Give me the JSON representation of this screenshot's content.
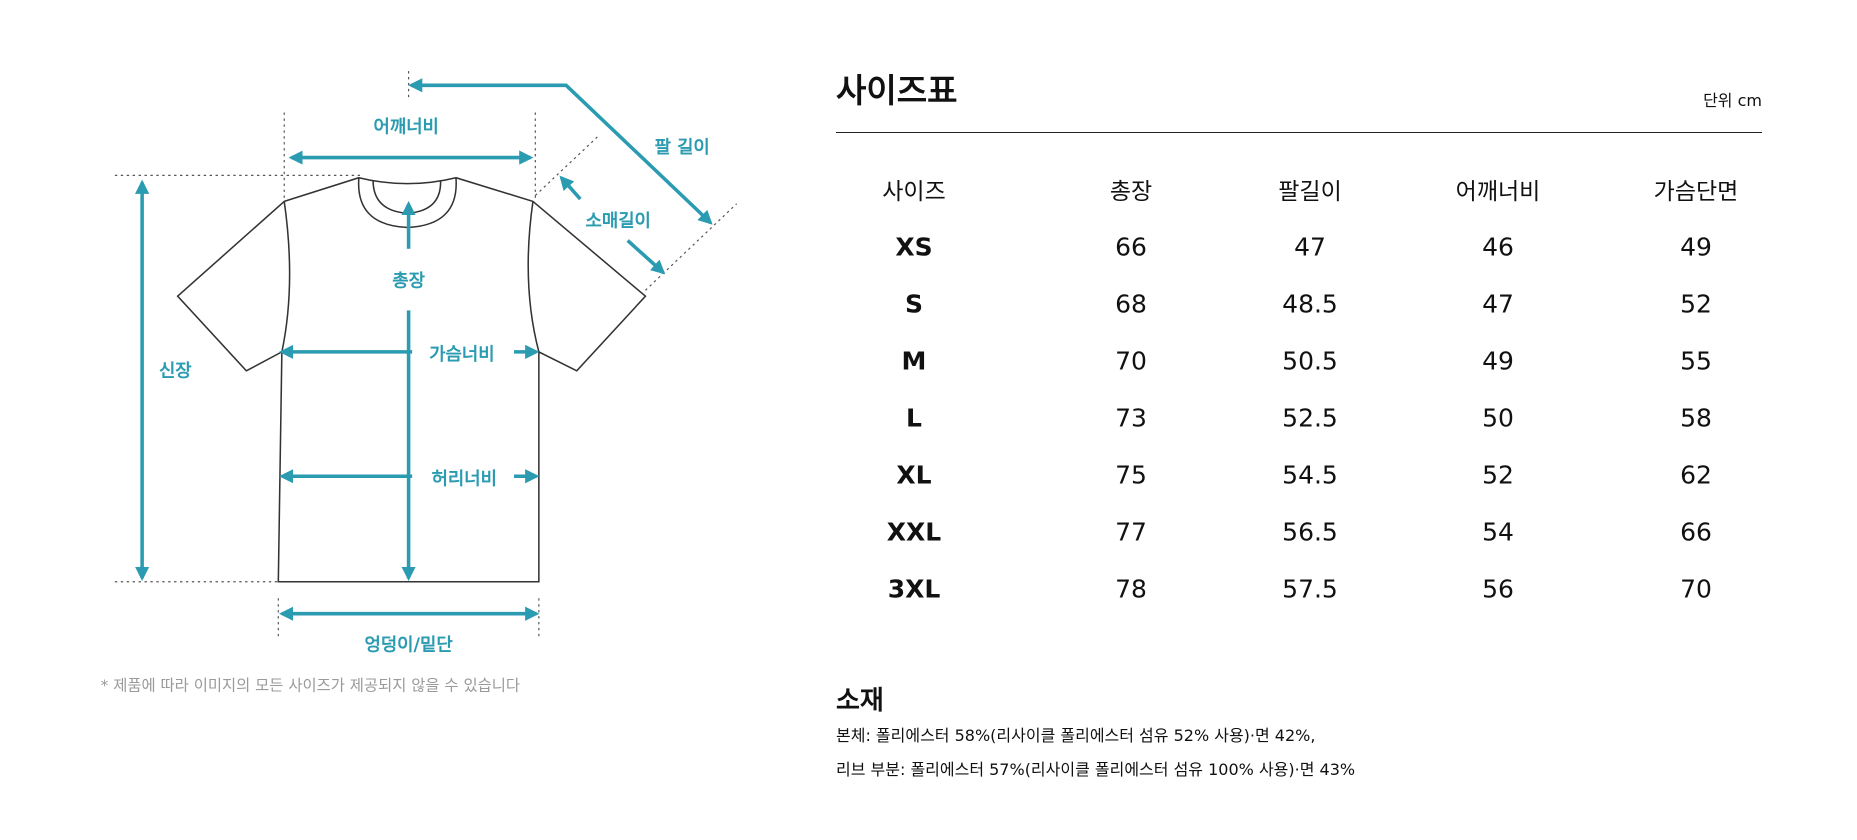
{
  "diagram": {
    "labels": {
      "shoulder": "어깨너비",
      "arm_length": "팔 길이",
      "sleeve_length": "소매길이",
      "total_length": "총장",
      "height": "신장",
      "chest": "가슴너비",
      "waist": "허리너비",
      "hem": "엉덩이/밑단"
    },
    "accent_color": "#2a9bb0",
    "note": "* 제품에 따라 이미지의 모든 사이즈가 제공되지 않을 수 있습니다"
  },
  "size_chart": {
    "title": "사이즈표",
    "unit": "단위 cm",
    "headers": [
      "사이즈",
      "총장",
      "팔길이",
      "어깨너비",
      "가슴단면"
    ],
    "rows": [
      [
        "XS",
        "66",
        "47",
        "46",
        "49"
      ],
      [
        "S",
        "68",
        "48.5",
        "47",
        "52"
      ],
      [
        "M",
        "70",
        "50.5",
        "49",
        "55"
      ],
      [
        "L",
        "73",
        "52.5",
        "50",
        "58"
      ],
      [
        "XL",
        "75",
        "54.5",
        "52",
        "62"
      ],
      [
        "XXL",
        "77",
        "56.5",
        "54",
        "66"
      ],
      [
        "3XL",
        "78",
        "57.5",
        "56",
        "70"
      ]
    ]
  },
  "material": {
    "title": "소재",
    "lines": [
      "본체: 폴리에스터 58%(리사이클 폴리에스터 섬유 52% 사용)·면 42%,",
      "리브 부분: 폴리에스터 57%(리사이클 폴리에스터 섬유 100% 사용)·면 43%"
    ]
  }
}
